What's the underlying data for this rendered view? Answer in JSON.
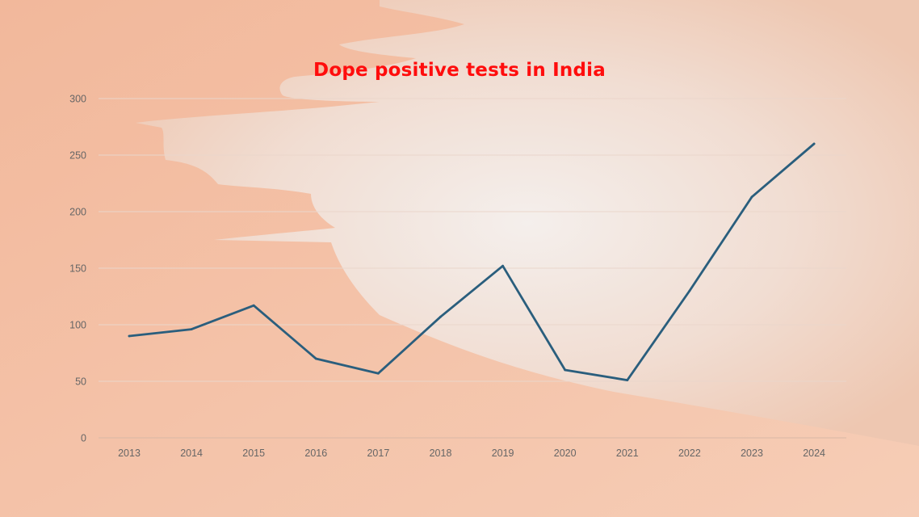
{
  "chart_data": {
    "type": "line",
    "title": "Dope positive tests in India",
    "xlabel": "",
    "ylabel": "",
    "categories": [
      "2013",
      "2014",
      "2015",
      "2016",
      "2017",
      "2018",
      "2019",
      "2020",
      "2021",
      "2022",
      "2023",
      "2024"
    ],
    "series": [
      {
        "values": [
          90,
          96,
          117,
          70,
          57,
          107,
          152,
          60,
          51,
          130,
          213,
          260
        ]
      }
    ],
    "ylim": [
      0,
      300
    ],
    "yticks": [
      "0",
      "50",
      "100",
      "150",
      "200",
      "250",
      "300"
    ],
    "grid": "horizontal",
    "legend": "none",
    "line_color": "#2a5e7d",
    "title_color": "#ff0d0d"
  }
}
